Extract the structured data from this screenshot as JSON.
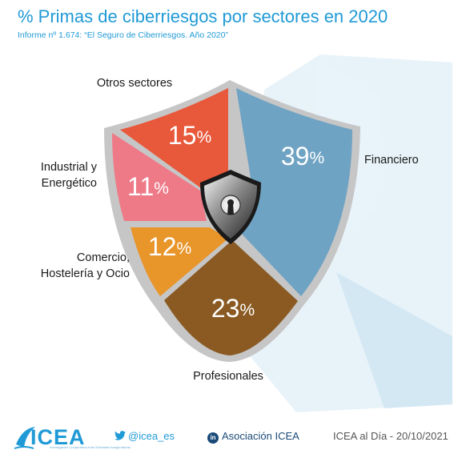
{
  "header": {
    "title": "% Primas de ciberriesgos por sectores en 2020",
    "subtitle": "Informe nº 1.674: “El Seguro de Ciberriesgos. Año 2020”"
  },
  "chart_data": {
    "type": "pie",
    "title": "% Primas de ciberriesgos por sectores en 2020",
    "subtitle": "Informe nº 1.674: “El Seguro de Ciberriesgos. Año 2020”",
    "unit": "%",
    "slices": [
      {
        "key": "otros",
        "name": "Otros sectores",
        "value": 15,
        "color": "#e8583a"
      },
      {
        "key": "financiero",
        "name": "Financiero",
        "value": 39,
        "color": "#6fa3c3"
      },
      {
        "key": "profesionales",
        "name": "Profesionales",
        "value": 23,
        "color": "#8a5a22"
      },
      {
        "key": "comercio",
        "name": "Comercio, Hostelería y Ocio",
        "value": 12,
        "color": "#e8952a"
      },
      {
        "key": "industrial",
        "name": "Industrial y Energético",
        "value": 11,
        "color": "#ee7a88"
      }
    ]
  },
  "labels": {
    "otros": [
      "Otros sectores"
    ],
    "financiero": [
      "Financiero"
    ],
    "profesionales": [
      "Profesionales"
    ],
    "comercio": [
      "Comercio,",
      "Hostelería y Ocio"
    ],
    "industrial": [
      "Industrial y",
      "Energético"
    ]
  },
  "footer": {
    "brand": "ICEA",
    "tagline": "Investigación Cooperativa entre Entidades Aseguradoras",
    "twitter": "@icea_es",
    "linkedin": "Asociación ICEA",
    "date": "ICEA al Día - 20/10/2021"
  },
  "colors": {
    "accent": "#1f9ad6",
    "shield_rim": "#c0c0c0",
    "background_shape": "#dcecf6"
  },
  "icons": [
    "lock-shield-icon",
    "twitter-icon",
    "linkedin-icon"
  ]
}
